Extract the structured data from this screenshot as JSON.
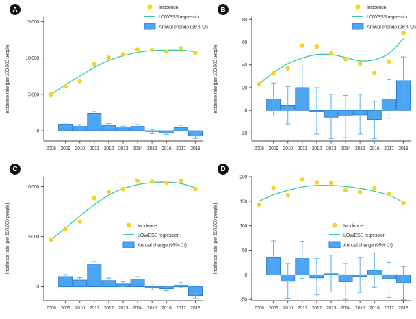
{
  "figure": {
    "legend": {
      "incidence": "Incidence",
      "lowess": "LOWESS regression",
      "annual_change": "Annual change (95% CI)"
    },
    "colors": {
      "incidence_dot": "#F6D321",
      "lowess_line": "#35C9A2",
      "bar_fill": "#4CA5F2",
      "bar_border": "#2B80D5",
      "error_bar": "#5AAEF2",
      "axis": "#4A4A4A",
      "text": "#3B3B3B",
      "badge_bg": "#141414",
      "badge_text": "#FFFFFF",
      "background": "#FFFFFF"
    }
  },
  "chart_data": [
    {
      "panel": "A",
      "type": "combo-scatter-line-bar",
      "ylabel": "Incidence rate (per 100,000 people)",
      "years": [
        2008,
        2009,
        2010,
        2011,
        2012,
        2013,
        2014,
        2015,
        2016,
        2017,
        2018
      ],
      "incidence": [
        5000,
        6100,
        6800,
        9200,
        10050,
        10500,
        11150,
        11100,
        10850,
        11350,
        10700
      ],
      "lowess": [
        5000,
        6300,
        7500,
        8700,
        9650,
        10300,
        10750,
        11000,
        11050,
        11050,
        10850
      ],
      "annual_change": {
        "years": [
          2009,
          2010,
          2011,
          2012,
          2013,
          2014,
          2015,
          2016,
          2017,
          2018
        ],
        "values": [
          900,
          600,
          2400,
          750,
          400,
          600,
          -100,
          -300,
          450,
          -700
        ],
        "ci_low": [
          700,
          350,
          2150,
          450,
          150,
          350,
          -400,
          -500,
          100,
          -1050
        ],
        "ci_high": [
          1100,
          850,
          2650,
          1000,
          650,
          850,
          200,
          -100,
          750,
          -400
        ]
      },
      "ylim": [
        -1400,
        15600
      ],
      "yticks": [
        {
          "v": 0,
          "label": "0"
        },
        {
          "v": 5000,
          "label": "5,000"
        },
        {
          "v": 10000,
          "label": "10,000"
        },
        {
          "v": 15000,
          "label": "15,000"
        }
      ],
      "legend_pos": {
        "x": 210,
        "y": 3
      }
    },
    {
      "panel": "B",
      "type": "combo-scatter-line-bar",
      "ylabel": "Incidence rate (per 100,000 people)",
      "years": [
        2008,
        2009,
        2010,
        2011,
        2012,
        2013,
        2014,
        2015,
        2016,
        2017,
        2018
      ],
      "incidence": [
        23,
        32.5,
        37,
        57,
        56,
        50,
        45,
        41,
        33,
        43,
        68
      ],
      "lowess": [
        23,
        33,
        41,
        46,
        49,
        49,
        46.5,
        43.5,
        44.5,
        50,
        63
      ],
      "annual_change": {
        "years": [
          2009,
          2010,
          2011,
          2012,
          2013,
          2014,
          2015,
          2016,
          2017,
          2018
        ],
        "values": [
          10,
          4,
          20,
          -1,
          -6,
          -5,
          -4,
          -8,
          10,
          26
        ],
        "ci_low": [
          -5,
          -12,
          2,
          -21,
          -25,
          -24,
          -21,
          -25,
          -7,
          5
        ],
        "ci_high": [
          24,
          21,
          39,
          20,
          14,
          13,
          14,
          8,
          27,
          47
        ]
      },
      "ylim": [
        -27,
        82
      ],
      "yticks": [
        {
          "v": -20,
          "label": "-20"
        },
        {
          "v": 0,
          "label": "0"
        },
        {
          "v": 20,
          "label": "20"
        },
        {
          "v": 40,
          "label": "40"
        },
        {
          "v": 60,
          "label": "60"
        },
        {
          "v": 80,
          "label": "80"
        }
      ],
      "legend_pos": {
        "x": 210,
        "y": 3
      }
    },
    {
      "panel": "C",
      "type": "combo-scatter-line-bar",
      "ylabel": "Incidence rate (per 100,000 people)",
      "years": [
        2008,
        2009,
        2010,
        2011,
        2012,
        2013,
        2014,
        2015,
        2016,
        2017,
        2018
      ],
      "incidence": [
        4700,
        5750,
        6500,
        8850,
        9500,
        9750,
        10600,
        10500,
        10400,
        10600,
        9750
      ],
      "lowess": [
        4700,
        5850,
        7050,
        8200,
        9150,
        9800,
        10200,
        10400,
        10450,
        10300,
        9900
      ],
      "annual_change": {
        "years": [
          2009,
          2010,
          2011,
          2012,
          2013,
          2014,
          2015,
          2016,
          2017,
          2018
        ],
        "values": [
          1000,
          650,
          2250,
          600,
          250,
          750,
          -100,
          -200,
          150,
          -900
        ],
        "ci_low": [
          800,
          400,
          2000,
          300,
          0,
          500,
          -350,
          -400,
          -100,
          -1200
        ],
        "ci_high": [
          1200,
          900,
          2500,
          850,
          500,
          1000,
          150,
          0,
          400,
          -600
        ]
      },
      "ylim": [
        -1400,
        11000
      ],
      "yticks": [
        {
          "v": 0,
          "label": "0"
        },
        {
          "v": 5000,
          "label": "5,000"
        },
        {
          "v": 10000,
          "label": "10,000"
        }
      ],
      "legend_pos": {
        "x": 179,
        "y": 89
      }
    },
    {
      "panel": "D",
      "type": "combo-scatter-line-bar",
      "ylabel": "Incidence rate (per 100,000 people)",
      "years": [
        2008,
        2009,
        2010,
        2011,
        2012,
        2013,
        2014,
        2015,
        2016,
        2017,
        2018
      ],
      "incidence": [
        143,
        177,
        162,
        194,
        188,
        187,
        172,
        168,
        176,
        165,
        146
      ],
      "lowess": [
        150,
        163,
        172,
        179,
        182,
        182,
        180,
        176,
        170,
        162,
        148
      ],
      "annual_change": {
        "years": [
          2009,
          2010,
          2011,
          2012,
          2013,
          2014,
          2015,
          2016,
          2017,
          2018
        ],
        "values": [
          35,
          -13,
          33,
          -6,
          2,
          -14,
          -3,
          9,
          -8,
          -16
        ],
        "ci_low": [
          0,
          -49,
          -7,
          -41,
          -35,
          -50,
          -36,
          -25,
          -46,
          -51
        ],
        "ci_high": [
          69,
          23,
          68,
          33,
          40,
          23,
          35,
          44,
          25,
          17
        ]
      },
      "ylim": [
        -52.5,
        200
      ],
      "yticks": [
        {
          "v": -50,
          "label": "-50"
        },
        {
          "v": 0,
          "label": "0"
        },
        {
          "v": 50,
          "label": "50"
        },
        {
          "v": 100,
          "label": "100"
        },
        {
          "v": 150,
          "label": "150"
        },
        {
          "v": 200,
          "label": "200"
        }
      ],
      "legend_pos": {
        "x": 176,
        "y": 89
      }
    }
  ]
}
